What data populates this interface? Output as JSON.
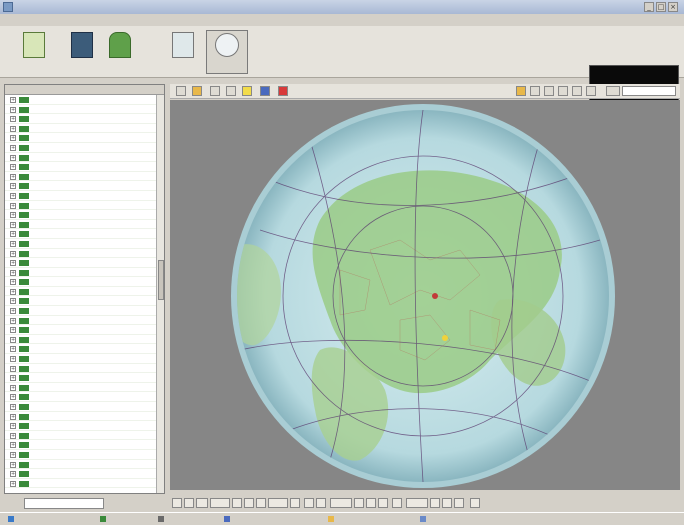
{
  "window": {
    "title": ""
  },
  "menu": [],
  "toolbar": {
    "buttons": [],
    "clock": {
      "time": "",
      "date": "",
      "line": ""
    }
  },
  "countries": {
    "headers": [
      "",
      ""
    ],
    "rows": []
  },
  "search": {
    "label": "",
    "value": ""
  },
  "map": {
    "labels": [],
    "colors": {
      "ocean": "#bfe0e6",
      "land": "#8fc87e",
      "bg": "#868686",
      "rim": "#cfe7ea"
    }
  },
  "mapnav": [],
  "status": []
}
